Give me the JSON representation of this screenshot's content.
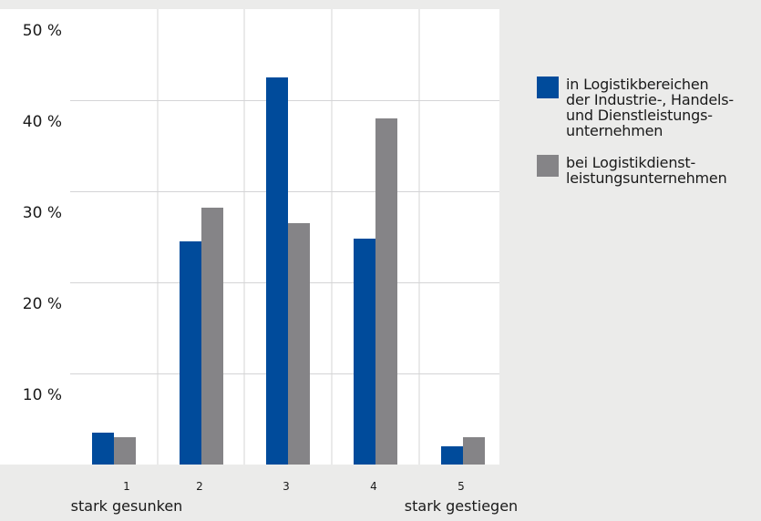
{
  "chart_data": {
    "type": "bar",
    "categories": [
      "1",
      "2",
      "3",
      "4",
      "5"
    ],
    "category_notes": [
      "stark gesunken",
      "",
      "",
      "",
      "stark gestiegen"
    ],
    "series": [
      {
        "name": "in Logistikbereichen\nder Industrie-, Handels-\nund Dienstleistungs-\nunternehmen",
        "color": "#004b9b",
        "values": [
          3.5,
          24.5,
          42.5,
          24.8,
          2
        ]
      },
      {
        "name": "bei Logistikdienst-\nleistungsunternehmen",
        "color": "#858487",
        "values": [
          3,
          28.2,
          26.5,
          38,
          3
        ]
      }
    ],
    "ylim": [
      0,
      50
    ],
    "yticks": [
      10,
      20,
      30,
      40,
      50
    ],
    "ytick_labels": [
      "10 %",
      "20 %",
      "30 %",
      "40 %",
      "50 %"
    ],
    "grid": true,
    "legend_position": "right"
  }
}
